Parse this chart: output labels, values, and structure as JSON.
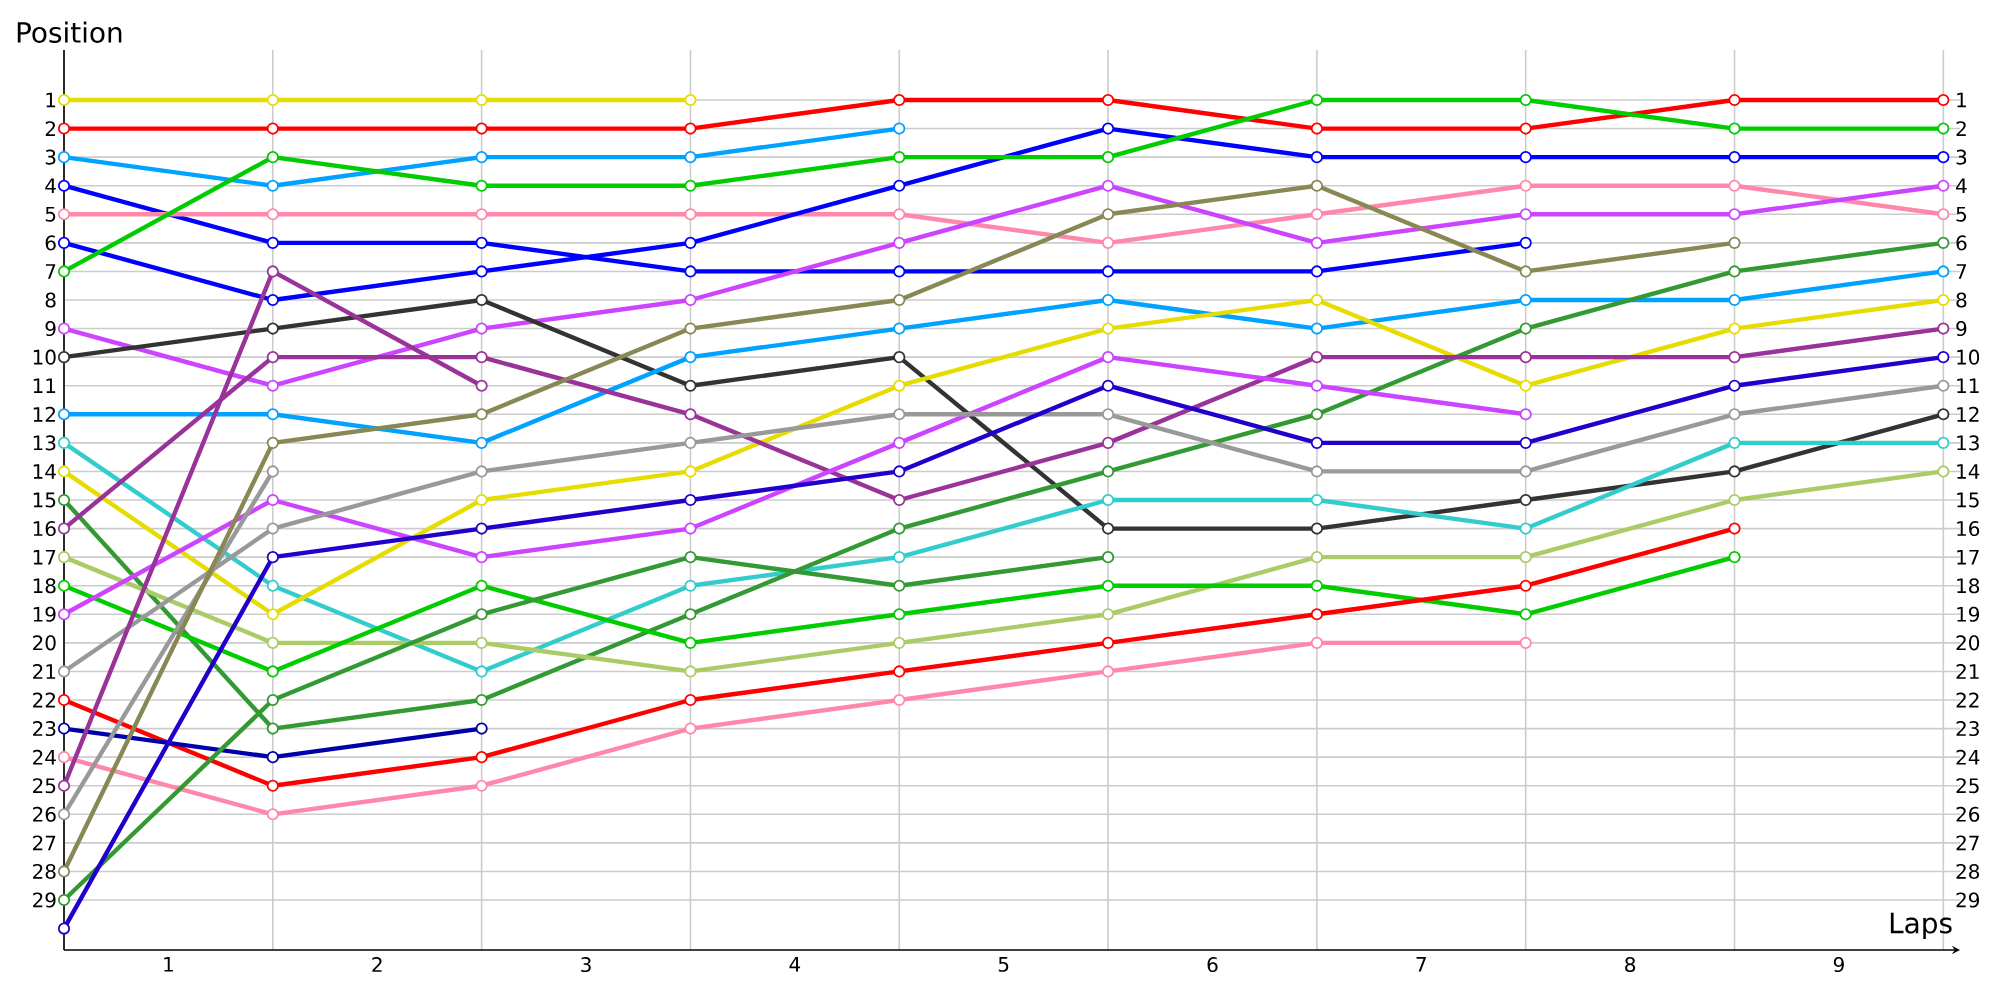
{
  "chart_data": {
    "type": "line",
    "xlabel": "Laps",
    "ylabel": "Position",
    "marker": "circle",
    "grid": true,
    "x": [
      0,
      1,
      2,
      3,
      4,
      5,
      6,
      7,
      8,
      9
    ],
    "xlim": [
      0,
      9.08
    ],
    "xticks": [
      {
        "value": 0,
        "label": null
      },
      {
        "value": 1,
        "label": null
      },
      {
        "value": 2,
        "label": null
      },
      {
        "value": 3,
        "label": null
      },
      {
        "value": 4,
        "label": null
      },
      {
        "value": 5,
        "label": null
      },
      {
        "value": 6,
        "label": null
      },
      {
        "value": 7,
        "label": null
      },
      {
        "value": 8,
        "label": null
      },
      {
        "value": 9,
        "label": null
      },
      {
        "value": 0.5,
        "label": "1"
      },
      {
        "value": 1.5,
        "label": "2"
      },
      {
        "value": 2.5,
        "label": "3"
      },
      {
        "value": 3.5,
        "label": "4"
      },
      {
        "value": 4.5,
        "label": "5"
      },
      {
        "value": 5.5,
        "label": "6"
      },
      {
        "value": 6.5,
        "label": "7"
      },
      {
        "value": 7.5,
        "label": "8"
      },
      {
        "value": 8.5,
        "label": "9"
      }
    ],
    "ylim": [
      30.75,
      -0.75
    ],
    "yticks": [
      1,
      2,
      3,
      4,
      5,
      6,
      7,
      8,
      9,
      10,
      11,
      12,
      13,
      14,
      15,
      16,
      17,
      18,
      19,
      20,
      21,
      22,
      23,
      24,
      25,
      26,
      27,
      28,
      29
    ],
    "y2lim": [
      30.75,
      -0.75
    ],
    "y2ticks": [
      1,
      2,
      3,
      4,
      5,
      6,
      7,
      8,
      9,
      10,
      11,
      12,
      13,
      14,
      15,
      16,
      17,
      18,
      19,
      20,
      21,
      22,
      23,
      24,
      25,
      26,
      27,
      28,
      29
    ],
    "series": [
      {
        "color": "#e6dc00",
        "values": [
          1,
          1,
          1,
          1,
          null,
          null,
          null,
          null,
          null,
          null
        ]
      },
      {
        "color": "#ff0000",
        "values": [
          2,
          2,
          2,
          2,
          1,
          1,
          2,
          2,
          1,
          1
        ]
      },
      {
        "color": "#00a2ff",
        "values": [
          3,
          4,
          3,
          3,
          2,
          null,
          null,
          null,
          null,
          null
        ]
      },
      {
        "color": "#0000ff",
        "values": [
          4,
          6,
          6,
          7,
          7,
          7,
          7,
          6,
          null,
          null
        ]
      },
      {
        "color": "#ff88aa",
        "values": [
          5,
          5,
          5,
          5,
          5,
          6,
          5,
          4,
          4,
          5
        ]
      },
      {
        "color": "#0000ff",
        "values": [
          6,
          8,
          7,
          6,
          4,
          2,
          3,
          3,
          3,
          3
        ]
      },
      {
        "color": "#00cc00",
        "values": [
          7,
          3,
          4,
          4,
          3,
          3,
          1,
          1,
          2,
          2
        ]
      },
      {
        "color": "#cc44ff",
        "values": [
          9,
          11,
          9,
          8,
          6,
          4,
          6,
          5,
          5,
          4
        ]
      },
      {
        "color": "#333333",
        "values": [
          10,
          9,
          8,
          11,
          10,
          16,
          16,
          15,
          14,
          12
        ]
      },
      {
        "color": "#00a2ff",
        "values": [
          12,
          12,
          13,
          10,
          9,
          8,
          9,
          8,
          8,
          7
        ]
      },
      {
        "color": "#33cccc",
        "values": [
          13,
          18,
          21,
          18,
          17,
          15,
          15,
          16,
          13,
          13
        ]
      },
      {
        "color": "#e6dc00",
        "values": [
          14,
          19,
          15,
          14,
          11,
          9,
          8,
          11,
          9,
          8
        ]
      },
      {
        "color": "#339933",
        "values": [
          15,
          23,
          22,
          19,
          16,
          14,
          12,
          9,
          7,
          6
        ]
      },
      {
        "color": "#993399",
        "values": [
          16,
          10,
          10,
          12,
          15,
          13,
          10,
          10,
          10,
          9
        ]
      },
      {
        "color": "#aacc66",
        "values": [
          17,
          20,
          20,
          21,
          20,
          19,
          17,
          17,
          15,
          14
        ]
      },
      {
        "color": "#00cc00",
        "values": [
          18,
          21,
          18,
          20,
          19,
          18,
          18,
          19,
          17,
          null
        ]
      },
      {
        "color": "#cc44ff",
        "values": [
          19,
          15,
          17,
          16,
          13,
          10,
          11,
          12,
          null,
          null
        ]
      },
      {
        "color": "#999999",
        "values": [
          21,
          16,
          14,
          13,
          12,
          12,
          14,
          14,
          12,
          11
        ]
      },
      {
        "color": "#ff0000",
        "values": [
          22,
          25,
          24,
          22,
          21,
          20,
          19,
          18,
          16,
          null
        ]
      },
      {
        "color": "#0000aa",
        "values": [
          23,
          24,
          23,
          null,
          null,
          null,
          null,
          null,
          null,
          null
        ]
      },
      {
        "color": "#ff88aa",
        "values": [
          24,
          26,
          25,
          23,
          22,
          21,
          20,
          20,
          null,
          null
        ]
      },
      {
        "color": "#993399",
        "values": [
          25,
          7,
          11,
          null,
          null,
          null,
          null,
          null,
          null,
          null
        ]
      },
      {
        "color": "#999999",
        "values": [
          26,
          14,
          null,
          null,
          null,
          null,
          null,
          null,
          null,
          null
        ]
      },
      {
        "color": "#888855",
        "values": [
          28,
          13,
          12,
          9,
          8,
          5,
          4,
          7,
          6,
          null
        ]
      },
      {
        "color": "#339933",
        "values": [
          29,
          22,
          19,
          17,
          18,
          17,
          null,
          null,
          null,
          null
        ]
      },
      {
        "color": "#2200cc",
        "values": [
          30,
          17,
          16,
          15,
          14,
          11,
          13,
          13,
          11,
          10
        ]
      }
    ]
  }
}
